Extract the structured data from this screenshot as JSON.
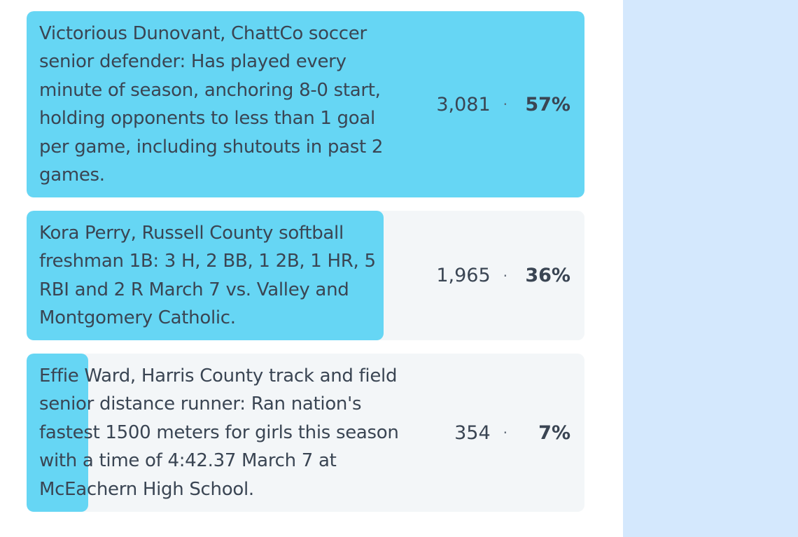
{
  "poll": {
    "options": [
      {
        "text": "Victorious Dunovant, ChattCo soccer senior defender: Has played every minute of season, anchoring 8-0 start, holding opponents to less than 1 goal per game, including shutouts in past 2 games.",
        "votes": "3,081",
        "percent_label": "57%",
        "share": 1.0
      },
      {
        "text": "Kora Perry, Russell County softball freshman 1B: 3 H, 2 BB, 1 2B, 1 HR, 5 RBI and 2 R March 7 vs. Valley and Montgomery Catholic.",
        "votes": "1,965",
        "percent_label": "36%",
        "share": 0.64
      },
      {
        "text": "Effie Ward, Harris County track and field senior distance runner: Ran nation's fastest 1500 meters for girls this season with a time of 4:42.37 March 7 at McEachern High School.",
        "votes": "354",
        "percent_label": "7%",
        "share": 0.11
      }
    ],
    "separator": "·"
  },
  "colors": {
    "bar_fill": "#66d6f4",
    "option_bg": "#f3f6f8",
    "text": "#3a4553",
    "side_panel": "#d4e8fd"
  }
}
